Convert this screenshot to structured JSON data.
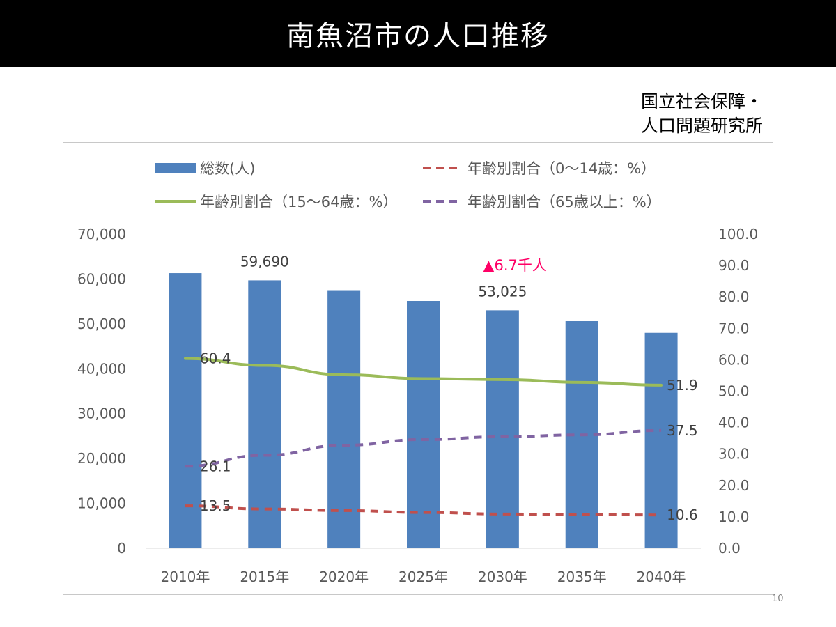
{
  "slide": {
    "title": "南魚沼市の人口推移",
    "source_line1": "国立社会保障・",
    "source_line2": "人口問題研究所",
    "page_number": "10"
  },
  "colors": {
    "bar": "#4f81bd",
    "line_0_14": "#c0504d",
    "line_15_64": "#9bbb59",
    "line_65_plus": "#8064a2",
    "annotation": "#ff0066"
  },
  "chart_data": {
    "type": "bar",
    "categories": [
      "2010年",
      "2015年",
      "2020年",
      "2025年",
      "2030年",
      "2035年",
      "2040年"
    ],
    "series": [
      {
        "name": "総数(人)",
        "type": "bar",
        "axis": "left",
        "values": [
          61300,
          59690,
          57500,
          55100,
          53025,
          50600,
          48000
        ]
      },
      {
        "name": "年齢別割合（0～14歳：%）",
        "type": "line",
        "style": "dashed",
        "axis": "right",
        "values": [
          13.5,
          12.5,
          12.0,
          11.4,
          10.9,
          10.7,
          10.6
        ]
      },
      {
        "name": "年齢別割合（15～64歳：%）",
        "type": "line",
        "style": "solid",
        "axis": "right",
        "values": [
          60.4,
          58.2,
          55.2,
          54.0,
          53.7,
          52.8,
          51.9
        ]
      },
      {
        "name": "年齢別割合（65歳以上：%）",
        "type": "line",
        "style": "dashed",
        "axis": "right",
        "values": [
          26.1,
          29.6,
          32.8,
          34.6,
          35.5,
          36.1,
          37.5
        ]
      }
    ],
    "y_left": {
      "min": 0,
      "max": 70000,
      "ticks": [
        "0",
        "10,000",
        "20,000",
        "30,000",
        "40,000",
        "50,000",
        "60,000",
        "70,000"
      ]
    },
    "y_right": {
      "min": 0,
      "max": 100,
      "ticks": [
        "0.0",
        "10.0",
        "20.0",
        "30.0",
        "40.0",
        "50.0",
        "60.0",
        "70.0",
        "80.0",
        "90.0",
        "100.0"
      ]
    },
    "data_labels": [
      {
        "series": 0,
        "index": 1,
        "text": "59,690"
      },
      {
        "series": 0,
        "index": 4,
        "text": "53,025"
      },
      {
        "series": 1,
        "index": 0,
        "text": "13.5"
      },
      {
        "series": 1,
        "index": 6,
        "text": "10.6"
      },
      {
        "series": 2,
        "index": 0,
        "text": "60.4"
      },
      {
        "series": 2,
        "index": 6,
        "text": "51.9"
      },
      {
        "series": 3,
        "index": 0,
        "text": "26.1"
      },
      {
        "series": 3,
        "index": 6,
        "text": "37.5"
      }
    ],
    "annotation": {
      "text": "▲6.7千人",
      "index": 4
    },
    "legend_position": "top",
    "grid": false
  }
}
